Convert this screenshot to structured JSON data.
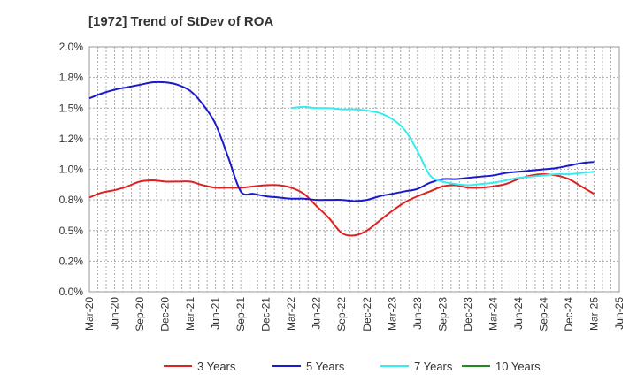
{
  "chart_data": {
    "type": "line",
    "title": "[1972]  Trend of StDev of ROA",
    "xlabel": "",
    "ylabel": "",
    "ylim": [
      0,
      2.0
    ],
    "y_ticks": [
      "0.0%",
      "0.2%",
      "0.5%",
      "0.8%",
      "1.0%",
      "1.2%",
      "1.5%",
      "1.8%",
      "2.0%"
    ],
    "y_tick_values": [
      0,
      0.25,
      0.5,
      0.75,
      1.0,
      1.25,
      1.5,
      1.75,
      2.0
    ],
    "x_ticks": [
      "Mar-20",
      "Jun-20",
      "Sep-20",
      "Dec-20",
      "Mar-21",
      "Jun-21",
      "Sep-21",
      "Dec-21",
      "Mar-22",
      "Jun-22",
      "Sep-22",
      "Dec-22",
      "Mar-23",
      "Jun-23",
      "Sep-23",
      "Dec-23",
      "Mar-24",
      "Jun-24",
      "Sep-24",
      "Dec-24",
      "Mar-25",
      "Jun-25"
    ],
    "grid": true,
    "legend_position": "bottom",
    "series": [
      {
        "name": "3 Years",
        "color": "#dd2222",
        "values": [
          0.77,
          0.81,
          0.83,
          0.86,
          0.9,
          0.91,
          0.9,
          0.9,
          0.9,
          0.87,
          0.85,
          0.85,
          0.85,
          0.86,
          0.87,
          0.87,
          0.85,
          0.8,
          0.7,
          0.6,
          0.48,
          0.46,
          0.5,
          0.58,
          0.66,
          0.73,
          0.78,
          0.82,
          0.86,
          0.87,
          0.85,
          0.85,
          0.86,
          0.88,
          0.92,
          0.95,
          0.96,
          0.95,
          0.92,
          0.86,
          0.8
        ]
      },
      {
        "name": "5 Years",
        "color": "#1a1acc",
        "values": [
          1.58,
          1.62,
          1.65,
          1.67,
          1.69,
          1.71,
          1.71,
          1.69,
          1.64,
          1.53,
          1.37,
          1.1,
          0.82,
          0.8,
          0.78,
          0.77,
          0.76,
          0.76,
          0.75,
          0.75,
          0.75,
          0.74,
          0.75,
          0.78,
          0.8,
          0.82,
          0.84,
          0.89,
          0.92,
          0.92,
          0.93,
          0.94,
          0.95,
          0.97,
          0.98,
          0.99,
          1.0,
          1.01,
          1.03,
          1.05,
          1.06
        ]
      },
      {
        "name": "7 Years",
        "color": "#33eeee",
        "values": [
          null,
          null,
          null,
          null,
          null,
          null,
          null,
          null,
          null,
          null,
          null,
          null,
          null,
          null,
          null,
          null,
          1.5,
          1.51,
          1.5,
          1.5,
          1.49,
          1.49,
          1.48,
          1.46,
          1.41,
          1.32,
          1.15,
          0.95,
          0.9,
          0.88,
          0.87,
          0.88,
          0.89,
          0.91,
          0.93,
          0.94,
          0.95,
          0.96,
          0.96,
          0.97,
          0.98
        ]
      },
      {
        "name": "10 Years",
        "color": "#228822",
        "values": []
      }
    ]
  }
}
